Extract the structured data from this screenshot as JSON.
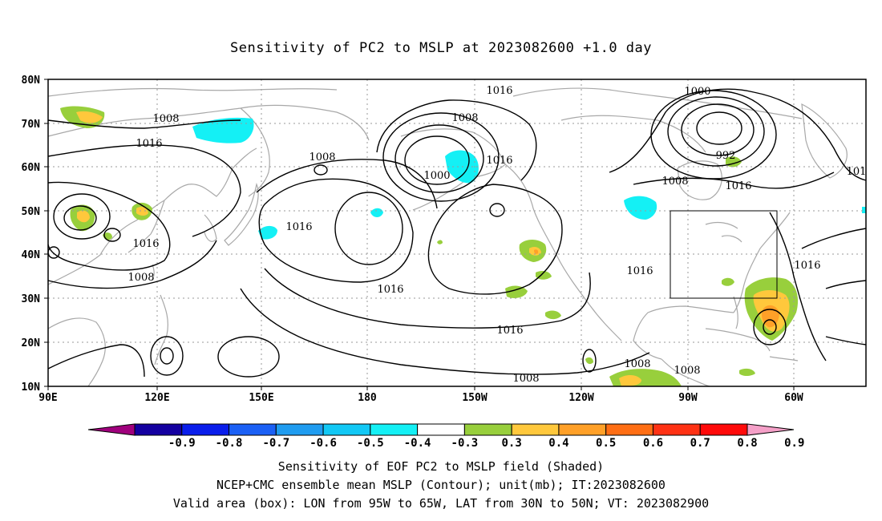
{
  "title": "Sensitivity of PC2 to MSLP at 2023082600 +1.0 day",
  "lat_labels": [
    "80N",
    "70N",
    "60N",
    "50N",
    "40N",
    "30N",
    "20N",
    "10N"
  ],
  "lon_labels": [
    "90E",
    "120E",
    "150E",
    "180",
    "150W",
    "120W",
    "90W",
    "60W"
  ],
  "contour_labels": [
    "1016",
    "1008",
    "1000",
    "992",
    "1016",
    "1008",
    "1016",
    "1008",
    "1000",
    "1016",
    "1016",
    "1016",
    "1008",
    "1016",
    "1008",
    "1016",
    "1008",
    "1016",
    "1016",
    "1008",
    "1008",
    "101"
  ],
  "colorbar": {
    "ticks": [
      "-0.9",
      "-0.8",
      "-0.7",
      "-0.6",
      "-0.5",
      "-0.4",
      "-0.3",
      "0.3",
      "0.4",
      "0.5",
      "0.6",
      "0.7",
      "0.8",
      "0.9"
    ],
    "colors": [
      "#a0007d",
      "#1400a0",
      "#0a1eeb",
      "#1b60f5",
      "#1f9cf0",
      "#12c8f5",
      "#14f0f5",
      "#ffffff",
      "#98cf3c",
      "#ffc83c",
      "#ffa028",
      "#ff6e14",
      "#ff3214",
      "#ff0a0a",
      "#f5a0c8"
    ]
  },
  "captions": [
    "Sensitivity of EOF PC2 to MSLP field (Shaded)",
    "NCEP+CMC ensemble mean MSLP (Contour); unit(mb); IT:2023082600",
    "Valid area (box): LON from 95W to 65W, LAT from 30N to 50N; VT: 2023082900"
  ]
}
